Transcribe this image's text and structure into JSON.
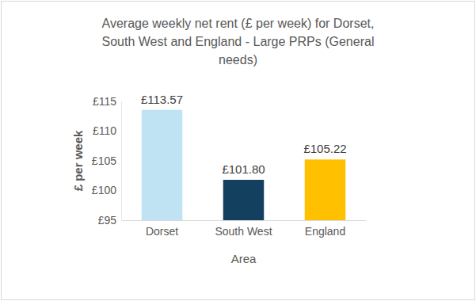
{
  "chart_data": {
    "type": "bar",
    "title": "Average weekly net rent (£ per week) for Dorset, South West and England - Large PRPs (General needs)",
    "x_label": "Area",
    "y_label": "£ per week",
    "categories": [
      "Dorset",
      "South West",
      "England"
    ],
    "values": [
      113.57,
      101.8,
      105.22
    ],
    "value_labels": [
      "£113.57",
      "£101.80",
      "£105.22"
    ],
    "colors": [
      "#c0e3f4",
      "#12405e",
      "#ffc000"
    ],
    "ylim": [
      95,
      115
    ],
    "yticks": [
      {
        "value": 95,
        "label": "£95"
      },
      {
        "value": 100,
        "label": "£100"
      },
      {
        "value": 105,
        "label": "£105"
      },
      {
        "value": 110,
        "label": "£110"
      },
      {
        "value": 115,
        "label": "£115"
      }
    ],
    "grid": false,
    "data_labels": true
  }
}
